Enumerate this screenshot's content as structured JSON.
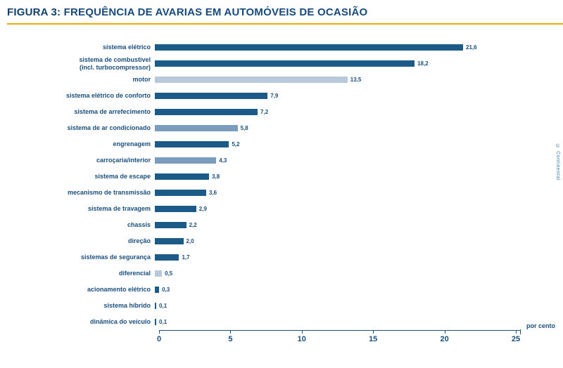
{
  "header": {
    "title_prefix": "FIGURA 3:",
    "title_rest": " FREQUÊNCIA DE AVARIAS EM AUTOMÓVEIS DE OCASIÃO",
    "underline_color": "#f2a900"
  },
  "credit": "© Continental",
  "chart_data": {
    "type": "bar",
    "orientation": "horizontal",
    "title": "FIGURA 3: FREQUÊNCIA DE AVARIAS EM AUTOMÓVEIS DE OCASIÃO",
    "xlabel": "por cento",
    "ylabel": "",
    "xlim": [
      0,
      25
    ],
    "x_ticks": [
      0,
      5,
      10,
      15,
      20,
      25
    ],
    "grid": false,
    "legend": false,
    "palette": {
      "dark": "#1c5a87",
      "medium": "#7b9cbd",
      "light": "#b7c9da"
    },
    "rows": [
      {
        "label": "sistema elétrico",
        "value": 21.6,
        "display": "21,6",
        "tone": "dark"
      },
      {
        "label": "sistema de combustível\n(incl. turbocompressor)",
        "value": 18.2,
        "display": "18,2",
        "tone": "dark"
      },
      {
        "label": "motor",
        "value": 13.5,
        "display": "13,5",
        "tone": "light"
      },
      {
        "label": "sistema elétrico de conforto",
        "value": 7.9,
        "display": "7,9",
        "tone": "dark"
      },
      {
        "label": "sistema de arrefecimento",
        "value": 7.2,
        "display": "7,2",
        "tone": "dark"
      },
      {
        "label": "sistema de ar condicionado",
        "value": 5.8,
        "display": "5,8",
        "tone": "medium"
      },
      {
        "label": "engrenagem",
        "value": 5.2,
        "display": "5,2",
        "tone": "dark"
      },
      {
        "label": "carroçaria/interior",
        "value": 4.3,
        "display": "4,3",
        "tone": "medium"
      },
      {
        "label": "sistema de escape",
        "value": 3.8,
        "display": "3,8",
        "tone": "dark"
      },
      {
        "label": "mecanismo de transmissão",
        "value": 3.6,
        "display": "3,6",
        "tone": "dark"
      },
      {
        "label": "sistema de travagem",
        "value": 2.9,
        "display": "2,9",
        "tone": "dark"
      },
      {
        "label": "chassis",
        "value": 2.2,
        "display": "2,2",
        "tone": "dark"
      },
      {
        "label": "direção",
        "value": 2.0,
        "display": "2,0",
        "tone": "dark"
      },
      {
        "label": "sistemas de segurança",
        "value": 1.7,
        "display": "1,7",
        "tone": "dark"
      },
      {
        "label": "diferencial",
        "value": 0.5,
        "display": "0,5",
        "tone": "light"
      },
      {
        "label": "acionamento elétrico",
        "value": 0.3,
        "display": "0,3",
        "tone": "dark"
      },
      {
        "label": "sistema híbrido",
        "value": 0.1,
        "display": "0,1",
        "tone": "dark"
      },
      {
        "label": "dinâmica do veículo",
        "value": 0.1,
        "display": "0,1",
        "tone": "dark"
      }
    ]
  }
}
